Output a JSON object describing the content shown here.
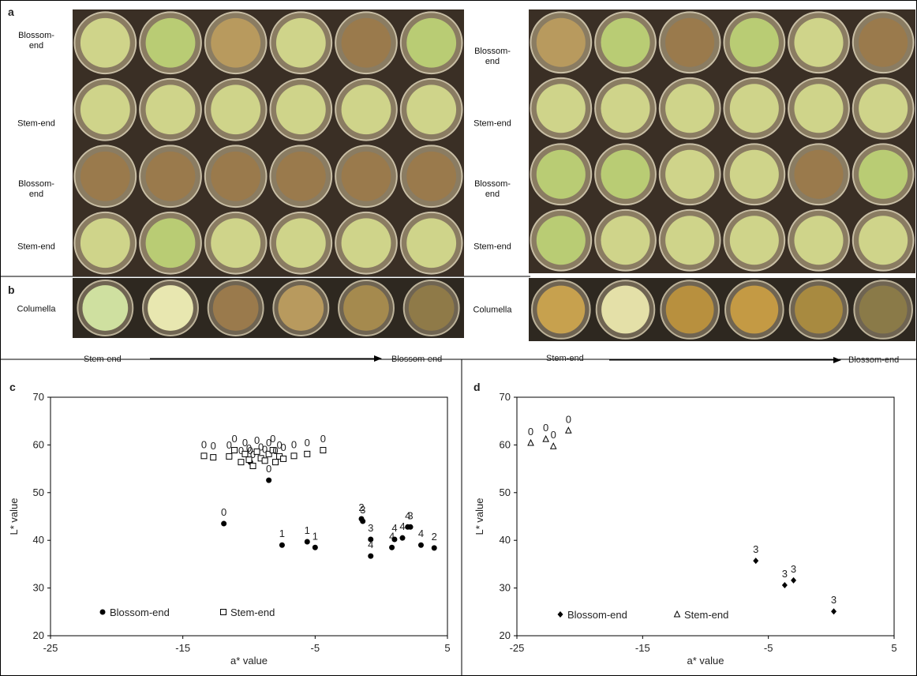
{
  "panel_a": {
    "label": "a",
    "left_rows": [
      "Blossom-end",
      "Stem-end",
      "Blossom-end",
      "Stem-end"
    ],
    "right_rows": [
      "Blossom-end",
      "Stem-end",
      "Blossom-end",
      "Stem-end"
    ]
  },
  "panel_b": {
    "label": "b",
    "left": {
      "row": "Columella",
      "start": "Stem-end",
      "end": "Blossom-end"
    },
    "right": {
      "row": "Columella",
      "start": "Stem-end",
      "end": "Blossom-end"
    }
  },
  "chart_data": [
    {
      "type": "scatter",
      "panel": "c",
      "xlabel": "a* value",
      "ylabel": "L* value",
      "xlim": [
        -25,
        5
      ],
      "ylim": [
        20,
        70
      ],
      "xticks": [
        -25,
        -15,
        -5,
        5
      ],
      "yticks": [
        20,
        30,
        40,
        50,
        60,
        70
      ],
      "series": [
        {
          "name": "Blossom-end",
          "marker": "circle",
          "color": "#000000",
          "x": [
            -11.9,
            -9.9,
            -8.5,
            -7.5,
            -5.6,
            -5.0,
            -1.5,
            -1.4,
            -0.8,
            -0.8,
            0.8,
            1.0,
            1.6,
            2.0,
            2.2,
            3.0,
            4.0
          ],
          "y": [
            43.5,
            56.4,
            52.6,
            39.0,
            39.7,
            38.5,
            44.5,
            44.0,
            40.2,
            36.7,
            38.5,
            40.2,
            40.5,
            42.8,
            42.8,
            39.0,
            38.4
          ],
          "scores": [
            0,
            0,
            0,
            1,
            1,
            1,
            2,
            3,
            3,
            4,
            4,
            4,
            4,
            4,
            3,
            4,
            2
          ]
        },
        {
          "name": "Stem-end",
          "marker": "square",
          "color": "#000000",
          "x": [
            -13.4,
            -12.7,
            -11.5,
            -11.1,
            -10.6,
            -10.3,
            -10.0,
            -9.7,
            -9.4,
            -9.1,
            -8.8,
            -8.5,
            -8.2,
            -8.0,
            -7.7,
            -7.4,
            -6.6,
            -5.6,
            -4.4
          ],
          "y": [
            57.7,
            57.4,
            57.6,
            58.9,
            56.4,
            58.1,
            56.9,
            55.6,
            58.6,
            57.2,
            56.7,
            58.1,
            58.9,
            56.4,
            57.6,
            57.1,
            57.7,
            58.1,
            58.9
          ],
          "scores": [
            0,
            0,
            0,
            0,
            0,
            0,
            0,
            0,
            0,
            0,
            0,
            0,
            0,
            0,
            0,
            0,
            0,
            0,
            0
          ]
        }
      ]
    },
    {
      "type": "scatter",
      "panel": "d",
      "xlabel": "a* value",
      "ylabel": "L* value",
      "xlim": [
        -25,
        5
      ],
      "ylim": [
        20,
        70
      ],
      "xticks": [
        -25,
        -15,
        -5,
        5
      ],
      "yticks": [
        20,
        30,
        40,
        50,
        60,
        70
      ],
      "series": [
        {
          "name": "Blossom-end",
          "marker": "diamond",
          "color": "#000000",
          "x": [
            -6.0,
            -3.7,
            -3.0,
            0.2
          ],
          "y": [
            35.7,
            30.6,
            31.6,
            25.1
          ],
          "scores": [
            3,
            3,
            3,
            3
          ]
        },
        {
          "name": "Stem-end",
          "marker": "triangle",
          "color": "#000000",
          "x": [
            -23.9,
            -22.7,
            -22.1,
            -20.9
          ],
          "y": [
            60.4,
            61.2,
            59.7,
            63.0
          ],
          "scores": [
            0,
            0,
            0,
            0
          ]
        }
      ]
    }
  ]
}
